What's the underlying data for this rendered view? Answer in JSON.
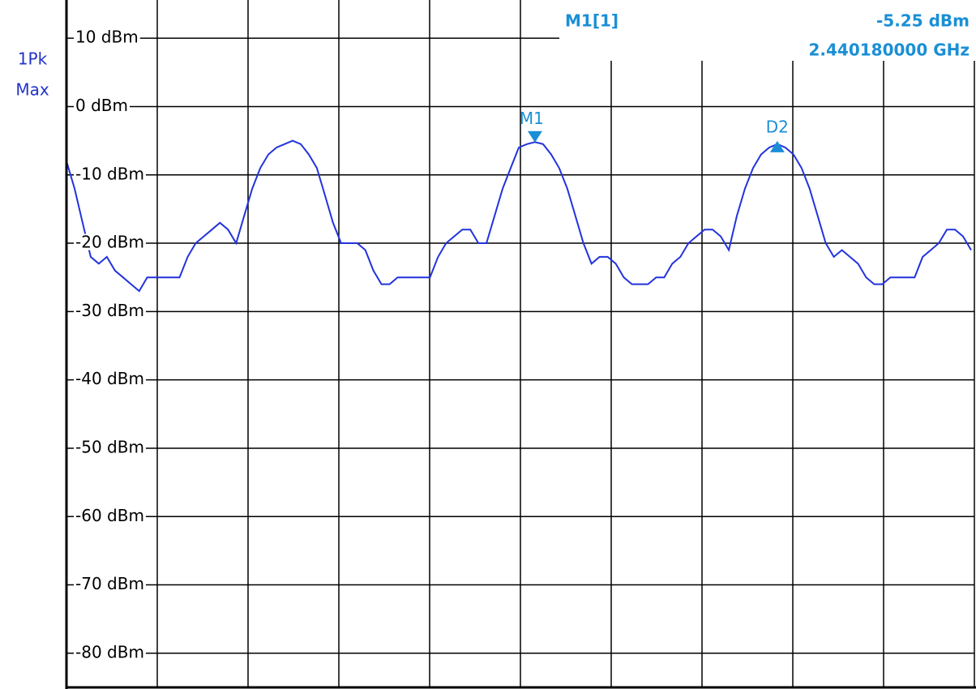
{
  "chart_data": {
    "type": "line",
    "trace_labels": [
      "1Pk",
      "Max"
    ],
    "ylim": [
      -85,
      15
    ],
    "yticks": [
      {
        "value": 10,
        "label": "10 dBm"
      },
      {
        "value": 0,
        "label": "0 dBm"
      },
      {
        "value": -10,
        "label": "-10 dBm"
      },
      {
        "value": -20,
        "label": "-20 dBm"
      },
      {
        "value": -30,
        "label": "-30 dBm"
      },
      {
        "value": -40,
        "label": "-40 dBm"
      },
      {
        "value": -50,
        "label": "-50 dBm"
      },
      {
        "value": -60,
        "label": "-60 dBm"
      },
      {
        "value": -70,
        "label": "-70 dBm"
      },
      {
        "value": -80,
        "label": "-80 dBm"
      }
    ],
    "grid": true,
    "series": [
      {
        "color": "#2233dd",
        "values": [
          -8,
          -12,
          -17,
          -22,
          -23,
          -22,
          -24,
          -25,
          -26,
          -27,
          -25,
          -25,
          -25,
          -25,
          -25,
          -22,
          -20,
          -19,
          -18,
          -17,
          -18,
          -20,
          -16,
          -12,
          -9,
          -7,
          -6,
          -5.5,
          -5,
          -5.5,
          -7,
          -9,
          -13,
          -17,
          -20,
          -20,
          -20,
          -21,
          -24,
          -26,
          -26,
          -25,
          -25,
          -25,
          -25,
          -25,
          -22,
          -20,
          -19,
          -18,
          -18,
          -20,
          -20,
          -16,
          -12,
          -9,
          -6,
          -5.5,
          -5.2,
          -5.5,
          -7,
          -9,
          -12,
          -16,
          -20,
          -23,
          -22,
          -22,
          -23,
          -25,
          -26,
          -26,
          -26,
          -25,
          -25,
          -23,
          -22,
          -20,
          -19,
          -18,
          -18,
          -19,
          -21,
          -16,
          -12,
          -9,
          -7,
          -6,
          -5.5,
          -6,
          -7,
          -9,
          -12,
          -16,
          -20,
          -22,
          -21,
          -22,
          -23,
          -25,
          -26,
          -26,
          -25,
          -25,
          -25,
          -25,
          -22,
          -21,
          -20,
          -18,
          -18,
          -19,
          -21
        ]
      }
    ],
    "markers": [
      {
        "label": "M1",
        "index": 58,
        "readout": "M1[1]",
        "value": -5.25,
        "value_label": "-5.25 dBm",
        "frequency": "2.440180000 GHz"
      },
      {
        "label": "D2",
        "index": 88
      }
    ]
  }
}
